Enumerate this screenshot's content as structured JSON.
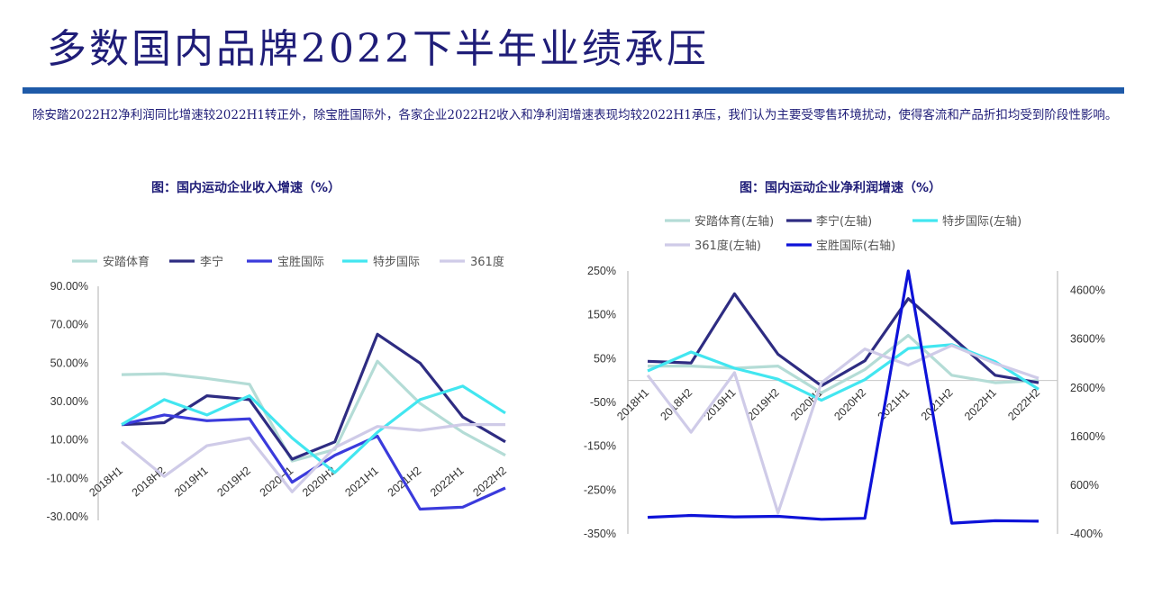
{
  "page": {
    "title": "多数国内品牌2022下半年业绩承压",
    "summary": "除安踏2022H2净利润同比增速较2022H1转正外，除宝胜国际外，各家企业2022H2收入和净利润增速表现均较2022H1承压，我们认为主要受零售环境扰动，使得客流和产品折扣均受到阶段性影响。"
  },
  "charts": {
    "left_caption": "图：国内运动企业收入增速（%）",
    "right_caption": "图：国内运动企业净利润增速（%）"
  },
  "colors": {
    "title": "#1f1d78",
    "rule": "#1e5aa8",
    "anta": "#b4dcd6",
    "lining": "#2e2c82",
    "pousheng": "#3b3bdc",
    "xtep": "#42e6f0",
    "d361": "#cfcbe8",
    "pousheng_right": "#0d12d8"
  },
  "chart_data": [
    {
      "type": "line",
      "title": "图：国内运动企业收入增速（%）",
      "categories": [
        "2018H1",
        "2018H2",
        "2019H1",
        "2019H2",
        "2020H1",
        "2020H2",
        "2021H1",
        "2021H2",
        "2022H1",
        "2022H2"
      ],
      "ylim": [
        -0.3,
        0.9
      ],
      "yticks": [
        "-30.00%",
        "-10.00%",
        "10.00%",
        "30.00%",
        "50.00%",
        "70.00%",
        "90.00%"
      ],
      "legend_position": "top",
      "series": [
        {
          "name": "安踏体育",
          "color": "#b4dcd6",
          "values": [
            0.44,
            0.445,
            0.42,
            0.39,
            -0.01,
            0.05,
            0.51,
            0.29,
            0.14,
            0.02
          ]
        },
        {
          "name": "李宁",
          "color": "#2e2c82",
          "values": [
            0.18,
            0.19,
            0.33,
            0.31,
            0.0,
            0.09,
            0.65,
            0.5,
            0.22,
            0.09
          ]
        },
        {
          "name": "宝胜国际",
          "color": "#3b3bdc",
          "values": [
            0.18,
            0.23,
            0.2,
            0.21,
            -0.12,
            0.02,
            0.12,
            -0.26,
            -0.25,
            -0.15
          ]
        },
        {
          "name": "特步国际",
          "color": "#42e6f0",
          "values": [
            0.18,
            0.31,
            0.23,
            0.33,
            0.11,
            -0.07,
            0.14,
            0.31,
            0.38,
            0.24
          ]
        },
        {
          "name": "361度",
          "color": "#cfcbe8",
          "values": [
            0.09,
            -0.09,
            0.07,
            0.11,
            -0.17,
            0.06,
            0.17,
            0.15,
            0.18,
            0.18
          ]
        }
      ]
    },
    {
      "type": "line",
      "title": "图：国内运动企业净利润增速（%）",
      "categories": [
        "2018H1",
        "2018H2",
        "2019H1",
        "2019H2",
        "2020H1",
        "2020H2",
        "2021H1",
        "2021H2",
        "2022H1",
        "2022H2"
      ],
      "ylim_left": [
        -3.5,
        2.5
      ],
      "ylim_right": [
        -4,
        50
      ],
      "yticks_left": [
        "-350%",
        "-250%",
        "-150%",
        "-50%",
        "50%",
        "150%",
        "250%"
      ],
      "yticks_right": [
        "-400%",
        "600%",
        "1600%",
        "2600%",
        "3600%",
        "4600%"
      ],
      "legend_position": "top",
      "series": [
        {
          "name": "安踏体育(左轴)",
          "axis": "left",
          "color": "#b4dcd6",
          "values": [
            0.33,
            0.33,
            0.28,
            0.33,
            -0.28,
            0.25,
            1.03,
            0.12,
            -0.05,
            0.0
          ]
        },
        {
          "name": "李宁(左轴)",
          "axis": "left",
          "color": "#2e2c82",
          "values": [
            0.44,
            0.4,
            1.98,
            0.6,
            -0.12,
            0.45,
            1.87,
            1.0,
            0.12,
            -0.05
          ]
        },
        {
          "name": "特步国际(左轴)",
          "axis": "left",
          "color": "#42e6f0",
          "values": [
            0.22,
            0.65,
            0.28,
            0.03,
            -0.45,
            0.02,
            0.73,
            0.82,
            0.43,
            -0.2
          ]
        },
        {
          "name": "361度(左轴)",
          "axis": "left",
          "color": "#cfcbe8",
          "values": [
            0.12,
            -1.18,
            0.18,
            -3.02,
            -0.05,
            0.72,
            0.35,
            0.8,
            0.39,
            0.05
          ]
        },
        {
          "name": "宝胜国际(右轴)",
          "axis": "right",
          "color": "#0d12d8",
          "values": [
            -0.6,
            -0.2,
            -0.5,
            -0.4,
            -1.0,
            -0.8,
            50.0,
            -1.8,
            -1.3,
            -1.4
          ]
        }
      ]
    }
  ]
}
